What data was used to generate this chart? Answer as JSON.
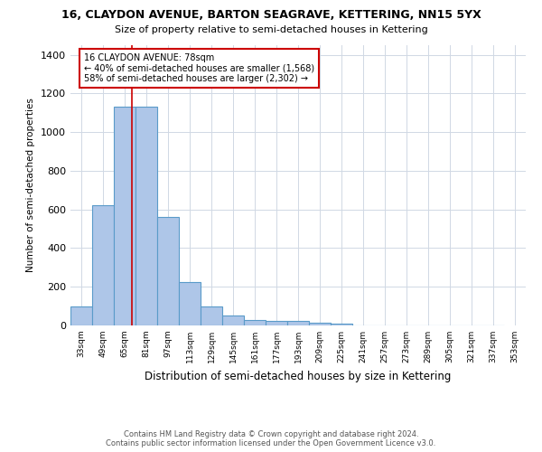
{
  "title": "16, CLAYDON AVENUE, BARTON SEAGRAVE, KETTERING, NN15 5YX",
  "subtitle": "Size of property relative to semi-detached houses in Kettering",
  "xlabel": "Distribution of semi-detached houses by size in Kettering",
  "ylabel": "Number of semi-detached properties",
  "bin_labels": [
    "33sqm",
    "49sqm",
    "65sqm",
    "81sqm",
    "97sqm",
    "113sqm",
    "129sqm",
    "145sqm",
    "161sqm",
    "177sqm",
    "193sqm",
    "209sqm",
    "225sqm",
    "241sqm",
    "257sqm",
    "273sqm",
    "289sqm",
    "305sqm",
    "321sqm",
    "337sqm",
    "353sqm"
  ],
  "bin_edges": [
    33,
    49,
    65,
    81,
    97,
    113,
    129,
    145,
    161,
    177,
    193,
    209,
    225,
    241,
    257,
    273,
    289,
    305,
    321,
    337,
    353
  ],
  "bar_heights": [
    100,
    620,
    1130,
    1130,
    560,
    225,
    100,
    50,
    30,
    25,
    25,
    15,
    10,
    0,
    0,
    0,
    0,
    0,
    0,
    0
  ],
  "bar_color": "#aec6e8",
  "bar_edge_color": "#5a9bc9",
  "property_size": 78,
  "red_line_color": "#cc0000",
  "annotation_text_line1": "16 CLAYDON AVENUE: 78sqm",
  "annotation_text_line2": "← 40% of semi-detached houses are smaller (1,568)",
  "annotation_text_line3": "58% of semi-detached houses are larger (2,302) →",
  "annotation_box_color": "#ffffff",
  "annotation_box_edge": "#cc0000",
  "ylim": [
    0,
    1450
  ],
  "yticks": [
    0,
    200,
    400,
    600,
    800,
    1000,
    1200,
    1400
  ],
  "footer_line1": "Contains HM Land Registry data © Crown copyright and database right 2024.",
  "footer_line2": "Contains public sector information licensed under the Open Government Licence v3.0.",
  "background_color": "#ffffff",
  "grid_color": "#d0d8e4"
}
